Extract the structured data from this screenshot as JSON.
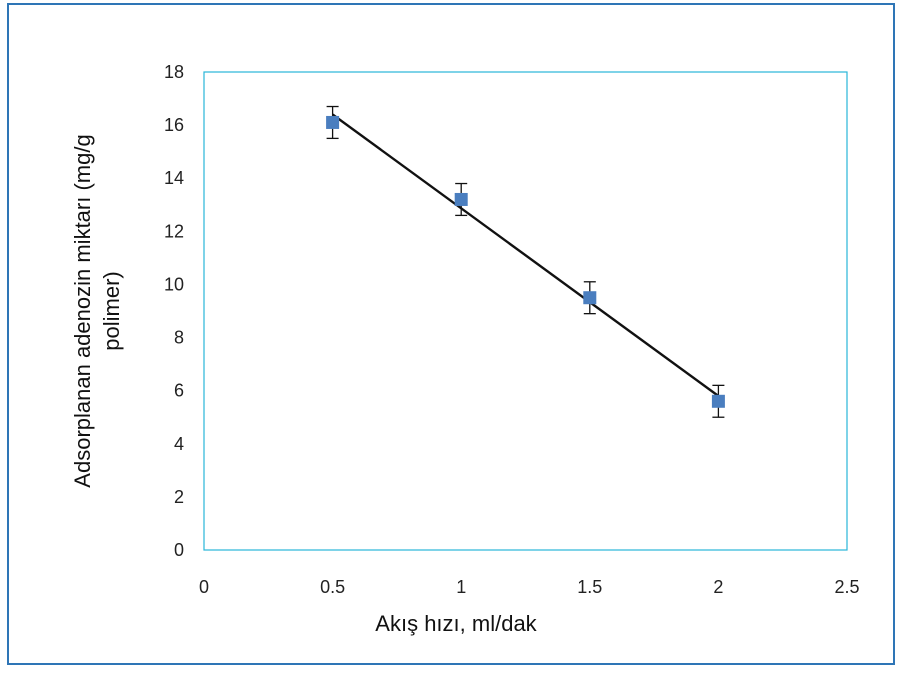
{
  "colors": {
    "frame_border": "#2e75b6",
    "plot_border": "#29b6d8",
    "marker": "#4a7ebf",
    "fit_line": "#111111",
    "error_bar": "#111111"
  },
  "chart_data": {
    "type": "scatter",
    "title": "",
    "xlabel": "Akış hızı, ml/dak",
    "ylabel_lines": [
      "Adsorplanan adenozin miktarı (mg/g",
      "polimer)"
    ],
    "xlim": [
      0,
      2.5
    ],
    "ylim": [
      0,
      18
    ],
    "x_ticks": [
      "0",
      "0.5",
      "1",
      "1.5",
      "2",
      "2.5"
    ],
    "y_ticks": [
      "0",
      "2",
      "4",
      "6",
      "8",
      "10",
      "12",
      "14",
      "16",
      "18"
    ],
    "grid": false,
    "legend": "none",
    "marker": "square",
    "series": [
      {
        "x": [
          0.5,
          1.0,
          1.5,
          2.0
        ],
        "y": [
          16.1,
          13.2,
          9.5,
          5.6
        ],
        "y_error": [
          0.6,
          0.6,
          0.6,
          0.6
        ]
      }
    ],
    "trendline": {
      "type": "linear",
      "x": [
        0.5,
        2.0
      ],
      "y": [
        16.4,
        5.8
      ]
    }
  }
}
